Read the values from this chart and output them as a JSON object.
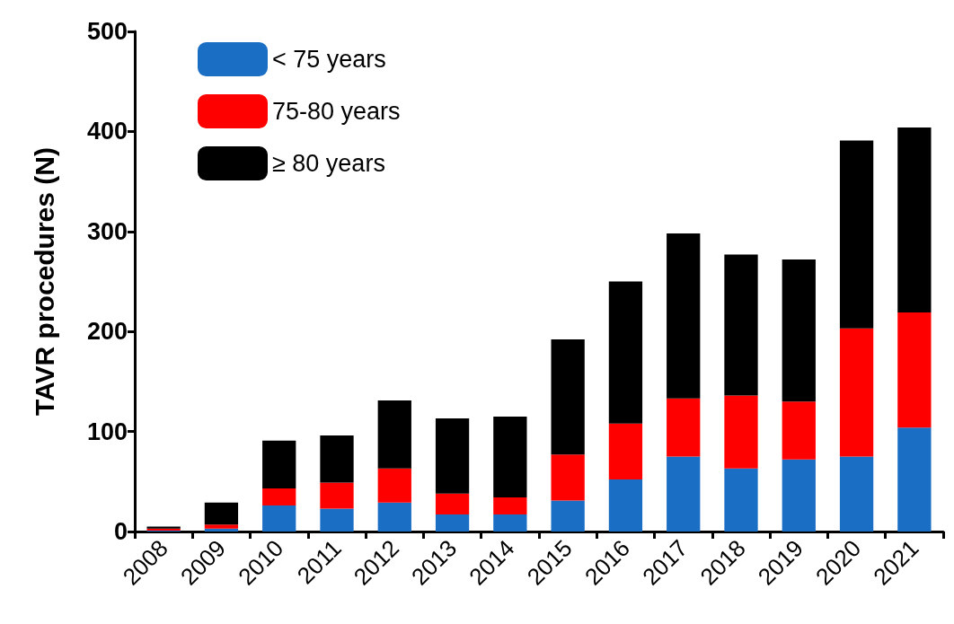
{
  "chart_data": {
    "type": "bar",
    "stacked": true,
    "ylabel": "TAVR procedures (N)",
    "categories": [
      "2008",
      "2009",
      "2010",
      "2011",
      "2012",
      "2013",
      "2014",
      "2015",
      "2016",
      "2017",
      "2018",
      "2019",
      "2020",
      "2021"
    ],
    "series": [
      {
        "name": "< 75 years",
        "color": "#1a6fc4",
        "values": [
          1,
          3,
          26,
          23,
          29,
          17,
          17,
          31,
          52,
          75,
          63,
          72,
          75,
          104
        ]
      },
      {
        "name": "75-80 years",
        "color": "#ff0000",
        "values": [
          2,
          4,
          17,
          26,
          34,
          21,
          17,
          46,
          56,
          58,
          73,
          58,
          128,
          115
        ]
      },
      {
        "name": "≥ 80 years",
        "color": "#000000",
        "values": [
          2,
          22,
          48,
          47,
          68,
          75,
          81,
          115,
          142,
          165,
          141,
          142,
          188,
          185
        ]
      }
    ],
    "ylim": [
      0,
      500
    ],
    "yticks": [
      0,
      100,
      200,
      300,
      400,
      500
    ],
    "grid": false,
    "legend": "top left"
  }
}
